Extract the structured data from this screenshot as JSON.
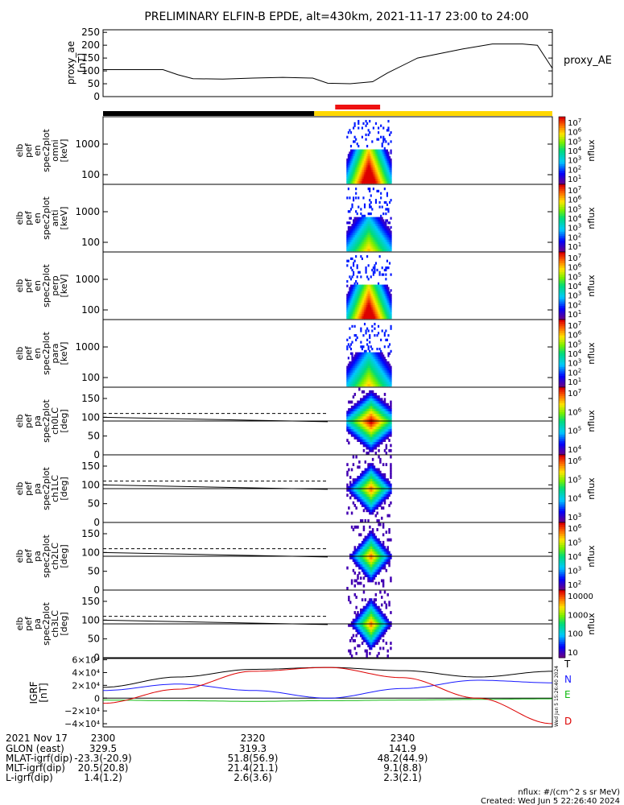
{
  "title": "PRELIMINARY ELFIN-B EPDE, alt=430km, 2021-11-17 23:00 to 24:00",
  "colors": {
    "ae_line": "#000000",
    "bar_black": "#000000",
    "bar_red": "#ee1111",
    "bar_yellow": "#ffd700",
    "grf_T": "#000000",
    "grf_N": "#1a1aff",
    "grf_E": "#11bb11",
    "grf_D": "#dd0000"
  },
  "ae_panel": {
    "ylabel_lines": [
      "proxy_ae",
      "[nT]"
    ],
    "yticks": [
      "250",
      "200",
      "150",
      "100",
      "50",
      "0"
    ],
    "legend": "proxy_AE"
  },
  "spec_panels": [
    {
      "ylabel_lines": [
        "elb",
        "pef",
        "en",
        "spec2plot",
        "omni",
        "[keV]"
      ],
      "yticks": [
        "1000",
        "100"
      ],
      "cbar_label": "nflux",
      "cbar_ticks": [
        "10^7",
        "10^6",
        "10^5",
        "10^4",
        "10^3",
        "10^2",
        "10^1"
      ]
    },
    {
      "ylabel_lines": [
        "elb",
        "pef",
        "en",
        "spec2plot",
        "anti",
        "[keV]"
      ],
      "yticks": [
        "1000",
        "100"
      ],
      "cbar_label": "nflux",
      "cbar_ticks": [
        "10^7",
        "10^6",
        "10^5",
        "10^4",
        "10^3",
        "10^2",
        "10^1"
      ]
    },
    {
      "ylabel_lines": [
        "elb",
        "pef",
        "en",
        "spec2plot",
        "perp",
        "[keV]"
      ],
      "yticks": [
        "1000",
        "100"
      ],
      "cbar_label": "nflux",
      "cbar_ticks": [
        "10^7",
        "10^6",
        "10^5",
        "10^4",
        "10^3",
        "10^2",
        "10^1"
      ]
    },
    {
      "ylabel_lines": [
        "elb",
        "pef",
        "en",
        "spec2plot",
        "para",
        "[keV]"
      ],
      "yticks": [
        "1000",
        "100"
      ],
      "cbar_label": "nflux",
      "cbar_ticks": [
        "10^7",
        "10^6",
        "10^5",
        "10^4",
        "10^3",
        "10^2",
        "10^1"
      ]
    }
  ],
  "pa_panels": [
    {
      "ylabel_lines": [
        "elb",
        "pef",
        "pa",
        "spec2plot",
        "ch0LC",
        "[deg]"
      ],
      "yticks": [
        "150",
        "100",
        "50",
        "0"
      ],
      "cbar_label": "nflux",
      "cbar_ticks": [
        "10^7",
        "10^6",
        "10^5",
        "10^4"
      ]
    },
    {
      "ylabel_lines": [
        "elb",
        "pef",
        "pa",
        "spec2plot",
        "ch1LC",
        "[deg]"
      ],
      "yticks": [
        "150",
        "100",
        "50",
        "0"
      ],
      "cbar_label": "nflux",
      "cbar_ticks": [
        "10^6",
        "10^5",
        "10^4",
        "10^3"
      ]
    },
    {
      "ylabel_lines": [
        "elb",
        "pef",
        "pa",
        "spec2plot",
        "ch2LC",
        "[deg]"
      ],
      "yticks": [
        "150",
        "100",
        "50",
        "0"
      ],
      "cbar_label": "nflux",
      "cbar_ticks": [
        "10^6",
        "10^5",
        "10^4",
        "10^3",
        "10^2"
      ]
    },
    {
      "ylabel_lines": [
        "elb",
        "pef",
        "pa",
        "spec2plot",
        "ch3LC",
        "[deg]"
      ],
      "yticks": [
        "150",
        "100",
        "50",
        "0"
      ],
      "cbar_label": "nflux",
      "cbar_ticks": [
        "10000",
        "1000",
        "100",
        "10"
      ]
    }
  ],
  "grf_panel": {
    "ylabel_lines": [
      "IGRF",
      "[nT]"
    ],
    "yticks": [
      "6×10⁴",
      "4×10⁴",
      "2×10⁴",
      "0",
      "−2×10⁴",
      "−4×10⁴"
    ],
    "legend": [
      "T",
      "N",
      "E",
      "D"
    ],
    "side_stamp": "Wed Jun  5 15:26:40 2024"
  },
  "footer": {
    "rows": [
      {
        "label": "2021 Nov 17",
        "values": [
          "2300",
          "2320",
          "2340"
        ]
      },
      {
        "label": "GLON (east)",
        "values": [
          "329.5",
          "319.3",
          "141.9"
        ]
      },
      {
        "label": "MLAT-igrf(dip)",
        "values": [
          "-23.3(-20.9)",
          "51.8(56.9)",
          "48.2(44.9)"
        ]
      },
      {
        "label": "MLT-igrf(dip)",
        "values": [
          "20.5(20.8)",
          "21.4(21.1)",
          "9.1(8.8)"
        ]
      },
      {
        "label": "L-igrf(dip)",
        "values": [
          "1.4(1.2)",
          "2.6(3.6)",
          "2.3(2.1)"
        ]
      }
    ],
    "units_note": "nflux: #/(cm^2 s sr MeV)",
    "created": "Created: Wed Jun  5 22:26:40 2024"
  },
  "chart_data": [
    {
      "type": "line",
      "name": "proxy_AE",
      "x_minutes": [
        0,
        8,
        10,
        12,
        16,
        20,
        24,
        28,
        30,
        33,
        36,
        38,
        42,
        48,
        52,
        56,
        58,
        60
      ],
      "y": [
        105,
        105,
        85,
        70,
        68,
        72,
        75,
        72,
        52,
        50,
        58,
        92,
        150,
        185,
        205,
        205,
        200,
        110
      ],
      "ylim": [
        0,
        260
      ]
    },
    {
      "type": "heatmap",
      "name": "energy spectrograms (omni, anti, perp, para)",
      "active_time_range_minutes": [
        32.5,
        38.5
      ],
      "energy_range_keV": [
        60,
        7000
      ],
      "yscale": "log"
    },
    {
      "type": "heatmap",
      "name": "pitch-angle spectrograms (ch0LC..ch3LC)",
      "active_time_range_minutes": [
        32.5,
        38.5
      ],
      "ylim": [
        0,
        180
      ],
      "loss_cone_dashed_deg": 110,
      "anti_loss_cone_line_deg": [
        100,
        88
      ]
    },
    {
      "type": "line",
      "name": "IGRF",
      "x_minutes": [
        0,
        10,
        20,
        30,
        40,
        50,
        60
      ],
      "series": [
        {
          "name": "T",
          "values": [
            17000,
            33000,
            45000,
            48000,
            43000,
            33000,
            42000
          ]
        },
        {
          "name": "N",
          "values": [
            12000,
            22000,
            12000,
            0,
            15000,
            28000,
            24000
          ]
        },
        {
          "name": "E",
          "values": [
            -3000,
            -4000,
            -5000,
            -4000,
            -3000,
            -2000,
            -1000
          ]
        },
        {
          "name": "D",
          "values": [
            -8000,
            14000,
            42000,
            48000,
            32000,
            0,
            -40000
          ]
        }
      ],
      "ylim": [
        -45000,
        62000
      ]
    }
  ]
}
